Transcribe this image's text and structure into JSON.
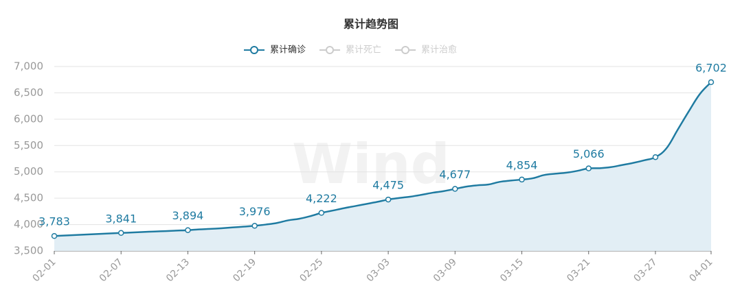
{
  "chart_data": {
    "type": "line",
    "title": "累计趋势图",
    "watermark": "Wind",
    "categories": [
      "02-01",
      null,
      null,
      null,
      null,
      null,
      "02-07",
      null,
      null,
      null,
      null,
      null,
      "02-13",
      null,
      null,
      null,
      null,
      null,
      "02-19",
      null,
      null,
      null,
      null,
      null,
      "02-25",
      null,
      null,
      null,
      null,
      null,
      "03-03",
      null,
      null,
      null,
      null,
      null,
      "03-09",
      null,
      null,
      null,
      null,
      null,
      "03-15",
      null,
      null,
      null,
      null,
      null,
      "03-21",
      null,
      null,
      null,
      null,
      null,
      "03-27",
      null,
      null,
      null,
      null,
      "04-01"
    ],
    "series": [
      {
        "name": "累计确诊",
        "color": "#1f7ba1",
        "values": [
          3783,
          3793,
          3803,
          3812,
          3822,
          3831,
          3841,
          3850,
          3859,
          3868,
          3876,
          3885,
          3894,
          3908,
          3918,
          3930,
          3945,
          3960,
          3976,
          4000,
          4030,
          4080,
          4110,
          4160,
          4222,
          4265,
          4310,
          4350,
          4390,
          4430,
          4475,
          4505,
          4530,
          4565,
          4605,
          4635,
          4677,
          4720,
          4745,
          4760,
          4810,
          4835,
          4854,
          4880,
          4940,
          4965,
          4985,
          5020,
          5066,
          5070,
          5090,
          5130,
          5170,
          5220,
          5280,
          5450,
          5800,
          6150,
          6480,
          6702
        ],
        "value_labels": [
          "3,783",
          null,
          null,
          null,
          null,
          null,
          "3,841",
          null,
          null,
          null,
          null,
          null,
          "3,894",
          null,
          null,
          null,
          null,
          null,
          "3,976",
          null,
          null,
          null,
          null,
          null,
          "4,222",
          null,
          null,
          null,
          null,
          null,
          "4,475",
          null,
          null,
          null,
          null,
          null,
          "4,677",
          null,
          null,
          null,
          null,
          null,
          "4,854",
          null,
          null,
          null,
          null,
          null,
          "5,066",
          null,
          null,
          null,
          null,
          null,
          null,
          null,
          null,
          null,
          null,
          "6,702"
        ]
      }
    ],
    "legend_inactive": [
      {
        "name": "累计死亡",
        "color": "#cccccc"
      },
      {
        "name": "累计治愈",
        "color": "#cccccc"
      }
    ],
    "area_color": "#e2eef5",
    "ylim": [
      3500,
      7000
    ],
    "yticks": [
      {
        "value": 3500,
        "label": "3,500"
      },
      {
        "value": 4000,
        "label": "4,000"
      },
      {
        "value": 4500,
        "label": "4,500"
      },
      {
        "value": 5000,
        "label": "5,000"
      },
      {
        "value": 5500,
        "label": "5,500"
      },
      {
        "value": 6000,
        "label": "6,000"
      },
      {
        "value": 6500,
        "label": "6,500"
      },
      {
        "value": 7000,
        "label": "7,000"
      }
    ],
    "grid": true
  }
}
